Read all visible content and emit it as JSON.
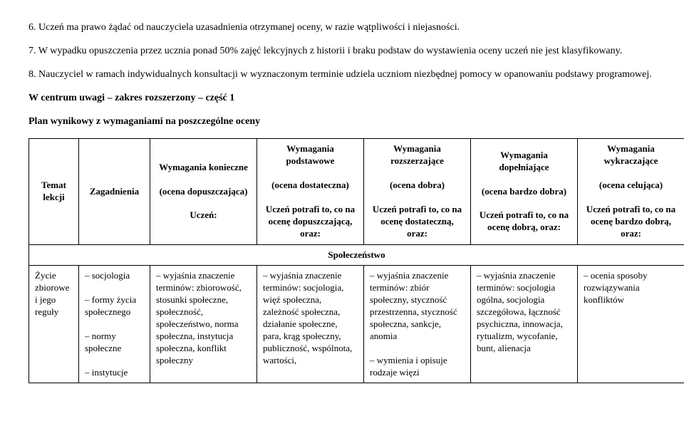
{
  "paragraphs": {
    "p6": "6. Uczeń ma prawo żądać od nauczyciela uzasadnienia otrzymanej oceny, w razie wątpliwości i niejasności.",
    "p7": "7. W wypadku opuszczenia przez ucznia ponad 50% zajęć lekcyjnych z historii i braku podstaw do wystawienia oceny uczeń nie jest klasyfikowany.",
    "p8": "8. Nauczyciel w ramach indywidualnych konsultacji w wyznaczonym terminie udziela uczniom niezbędnej pomocy w opanowaniu podstawy programowej.",
    "heading1": "W centrum uwagi – zakres rozszerzony – część 1",
    "heading2": "Plan wynikowy z wymaganiami na poszczególne oceny"
  },
  "headers": {
    "temat": "Temat lekcji",
    "zagadnienia": "Zagadnienia",
    "konieczne_title": "Wymagania konieczne",
    "konieczne_sub1": "(ocena dopuszczająca)",
    "konieczne_sub2": "Uczeń:",
    "podstawowe_title": "Wymagania podstawowe",
    "podstawowe_sub1": "(ocena dostateczna)",
    "podstawowe_sub2": "Uczeń potrafi to, co na ocenę dopuszczającą, oraz:",
    "rozszerzajace_title": "Wymagania rozszerzające",
    "rozszerzajace_sub1": "(ocena dobra)",
    "rozszerzajace_sub2": "Uczeń potrafi to, co na ocenę dostateczną, oraz:",
    "dopelniajace_title": "Wymagania dopełniające",
    "dopelniajace_sub1": "(ocena bardzo dobra)",
    "dopelniajace_sub2": "Uczeń potrafi to, co na ocenę dobrą, oraz:",
    "wykraczajace_title": "Wymagania wykraczające",
    "wykraczajace_sub1": "(ocena celująca)",
    "wykraczajace_sub2": "Uczeń potrafi to, co na ocenę bardzo dobrą, oraz:"
  },
  "section": {
    "title": "Społeczeństwo"
  },
  "row1": {
    "temat": "Życie zbiorowe i jego reguły",
    "zagadnienia": "– socjologia\n\n– formy życia społecznego\n\n– normy społeczne\n\n– instytucje",
    "konieczne": "– wyjaśnia znaczenie terminów: zbiorowość, stosunki społeczne, społeczność, społeczeństwo, norma społeczna, instytucja społeczna, konflikt społeczny",
    "podstawowe": "– wyjaśnia znaczenie terminów: socjologia, więź społeczna, zależność społeczna, działanie społeczne, para, krąg społeczny, publiczność, wspólnota, wartości,",
    "rozszerzajace": "– wyjaśnia znaczenie terminów: zbiór społeczny, styczność przestrzenna, styczność społeczna, sankcje, anomia\n\n– wymienia i opisuje rodzaje więzi",
    "dopelniajace": "– wyjaśnia znaczenie terminów: socjologia ogólna, socjologia szczegółowa, łączność psychiczna, innowacja, rytualizm, wycofanie, bunt, alienacja",
    "wykraczajace": "– ocenia sposoby rozwiązywania konfliktów"
  }
}
